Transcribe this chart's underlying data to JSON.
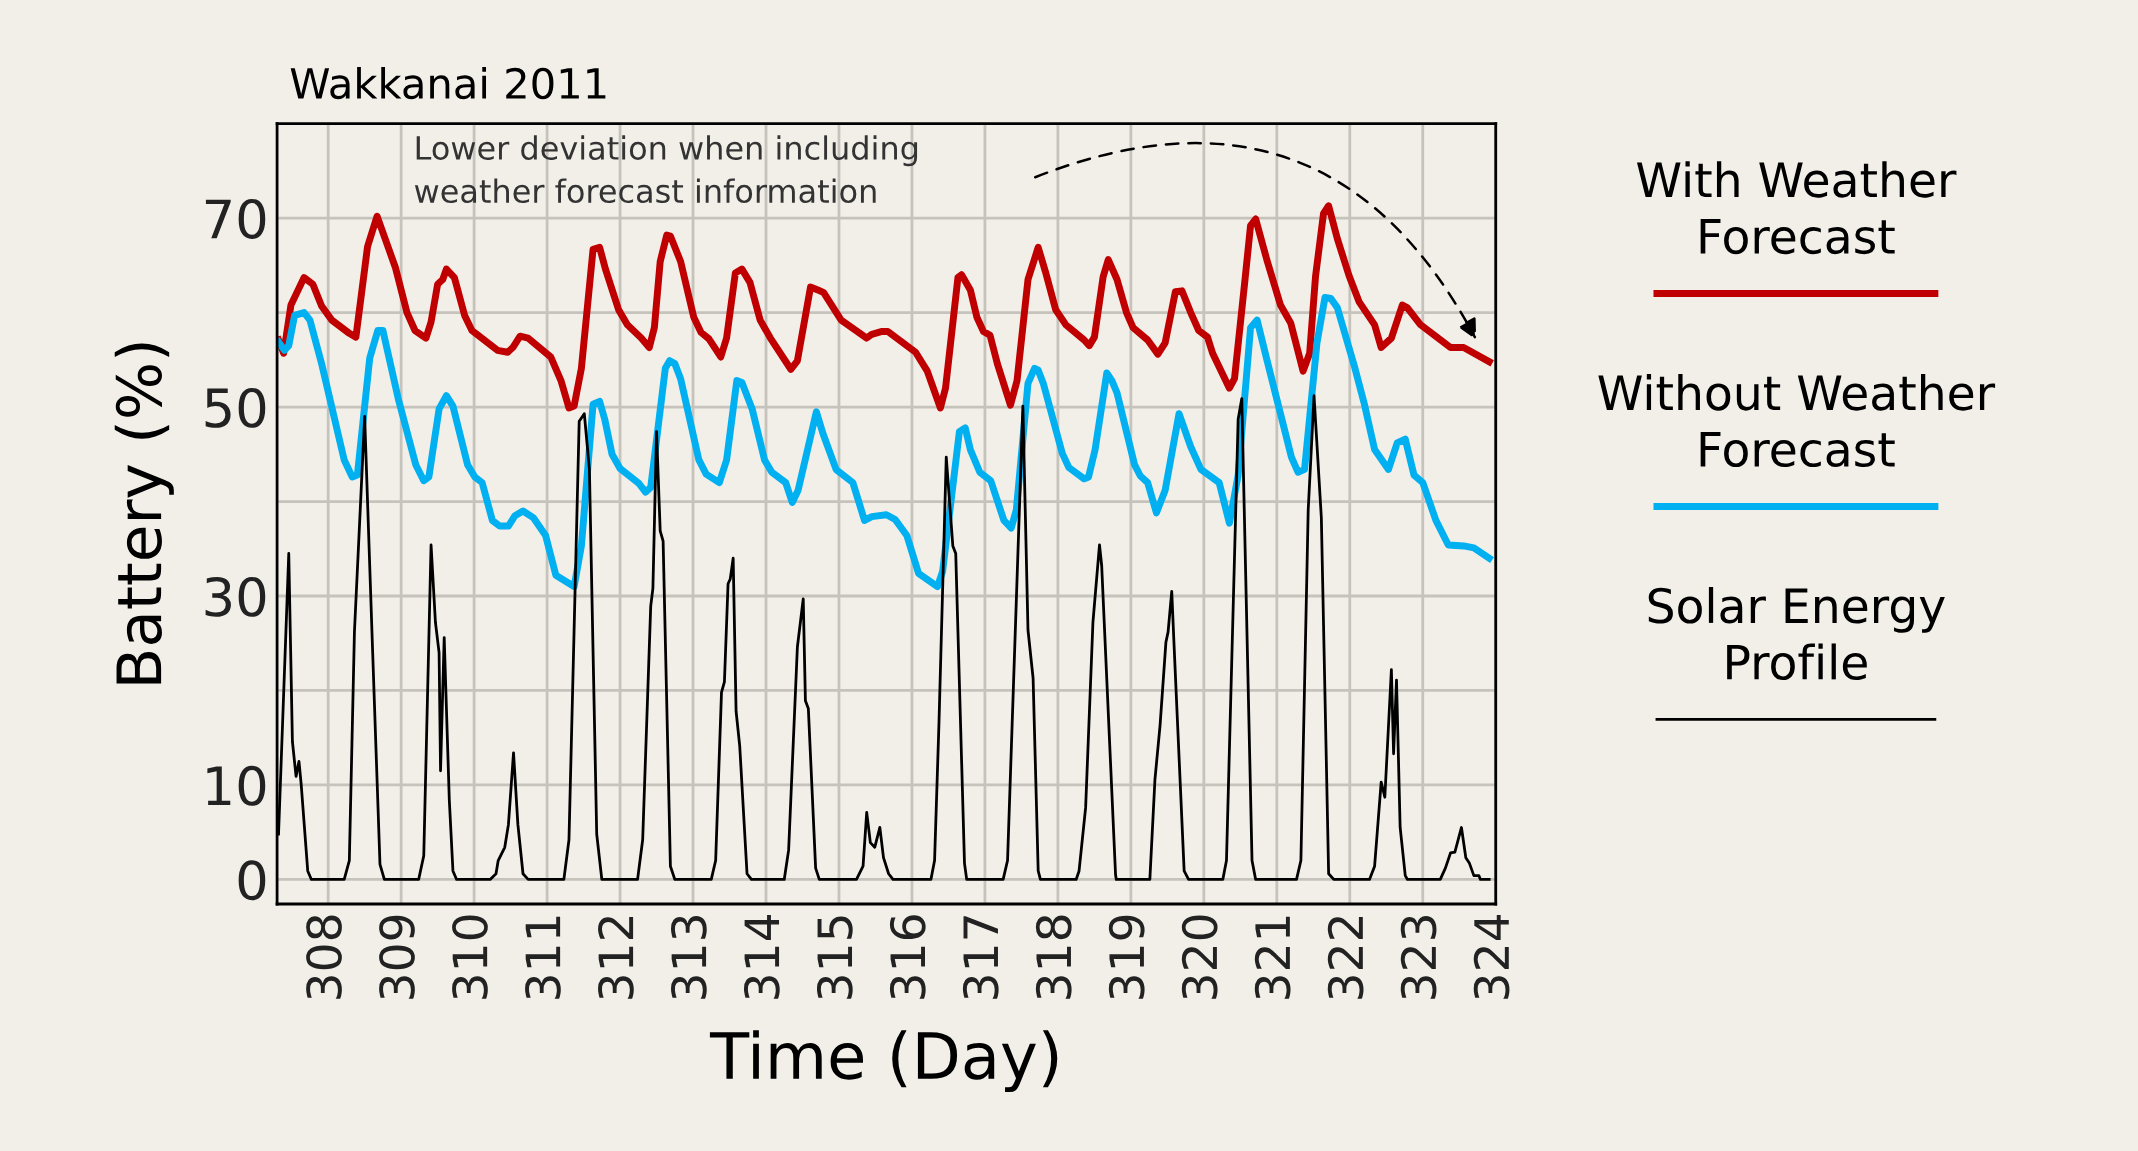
{
  "chart_data": {
    "type": "line",
    "title": "Wakkanai 2011",
    "xlabel": "Time (Day)",
    "ylabel": "Battery (%)",
    "xlim": [
      307.3,
      324
    ],
    "ylim": [
      -2.6,
      80
    ],
    "xticks": [
      308,
      309,
      310,
      311,
      312,
      313,
      314,
      315,
      316,
      317,
      318,
      319,
      320,
      321,
      322,
      323,
      324
    ],
    "yticks": [
      0,
      10,
      {
        "value": 20,
        "label": null
      },
      30,
      {
        "value": 40,
        "label": null
      },
      50,
      {
        "value": 60,
        "label": null
      },
      70
    ],
    "grid": true,
    "legend": "right",
    "marker": "none",
    "line_style": "solid",
    "annotations": [
      "Lower deviation when including\nweather forecast information"
    ],
    "series": [
      {
        "name": "With Weather Forecast",
        "color": "#c00000",
        "x": [
          307.32,
          307.39,
          307.49,
          307.67,
          307.79,
          307.91,
          308.05,
          308.29,
          308.38,
          308.54,
          308.67,
          308.92,
          309.08,
          309.19,
          309.34,
          309.41,
          309.5,
          309.57,
          309.62,
          309.73,
          309.87,
          309.97,
          310.32,
          310.46,
          310.53,
          310.63,
          310.74,
          311.05,
          311.19,
          311.3,
          311.37,
          311.47,
          311.63,
          311.72,
          311.8,
          311.98,
          312.1,
          312.29,
          312.4,
          312.47,
          312.55,
          312.64,
          312.69,
          312.83,
          313.01,
          313.11,
          313.22,
          313.38,
          313.46,
          313.58,
          313.67,
          313.78,
          313.92,
          314.06,
          314.34,
          314.43,
          314.61,
          314.71,
          314.79,
          315.03,
          315.38,
          315.45,
          315.59,
          315.67,
          316.05,
          316.21,
          316.33,
          316.39,
          316.46,
          316.63,
          316.68,
          316.8,
          316.89,
          316.98,
          317.07,
          317.17,
          317.35,
          317.44,
          317.59,
          317.73,
          317.83,
          317.97,
          318.11,
          318.36,
          318.43,
          318.5,
          318.62,
          318.69,
          318.81,
          318.94,
          319.03,
          319.23,
          319.37,
          319.47,
          319.61,
          319.7,
          319.82,
          319.93,
          320.05,
          320.12,
          320.35,
          320.42,
          320.56,
          320.64,
          320.71,
          320.87,
          321.05,
          321.19,
          321.36,
          321.45,
          321.53,
          321.64,
          321.71,
          321.83,
          321.99,
          322.13,
          322.34,
          322.43,
          322.57,
          322.72,
          322.79,
          322.97,
          323.38,
          323.56,
          323.91
        ],
        "values": [
          57.1,
          55.7,
          60.8,
          63.7,
          63.0,
          60.7,
          59.2,
          57.8,
          57.4,
          67.0,
          70.2,
          64.8,
          60.0,
          58.1,
          57.3,
          59.0,
          63.0,
          63.5,
          64.6,
          63.7,
          59.7,
          58.1,
          56.0,
          55.8,
          56.3,
          57.5,
          57.3,
          55.3,
          52.8,
          49.9,
          50.1,
          54.1,
          66.7,
          66.9,
          64.6,
          60.3,
          58.7,
          57.3,
          56.3,
          58.4,
          65.4,
          68.2,
          68.1,
          65.4,
          59.5,
          57.9,
          57.2,
          55.3,
          57.3,
          64.2,
          64.6,
          63.2,
          59.2,
          57.3,
          54.0,
          54.9,
          62.7,
          62.4,
          62.1,
          59.2,
          57.3,
          57.7,
          58.0,
          58.0,
          55.8,
          53.8,
          51.2,
          49.9,
          52.0,
          63.7,
          64.0,
          62.4,
          59.5,
          58.0,
          57.6,
          54.6,
          50.2,
          52.8,
          63.5,
          66.9,
          64.3,
          60.3,
          58.7,
          57.1,
          56.5,
          57.4,
          63.8,
          65.6,
          63.5,
          60.0,
          58.4,
          57.1,
          55.6,
          56.8,
          62.2,
          62.3,
          60.0,
          58.1,
          57.4,
          55.7,
          52.0,
          53.0,
          63.2,
          69.2,
          69.9,
          65.4,
          60.8,
          58.9,
          53.8,
          55.7,
          63.8,
          70.5,
          71.3,
          67.8,
          63.9,
          61.1,
          58.7,
          56.3,
          57.3,
          60.8,
          60.5,
          58.7,
          56.3,
          56.3,
          54.8
        ]
      },
      {
        "name": "Without Weather Forecast",
        "color": "#00b0f0",
        "x": [
          307.32,
          307.4,
          307.46,
          307.54,
          307.67,
          307.75,
          307.91,
          308.22,
          308.33,
          308.4,
          308.57,
          308.68,
          308.75,
          308.96,
          309.2,
          309.31,
          309.38,
          309.52,
          309.62,
          309.71,
          309.91,
          310.01,
          310.11,
          310.25,
          310.35,
          310.47,
          310.56,
          310.67,
          310.81,
          310.98,
          311.12,
          311.37,
          311.47,
          311.63,
          311.72,
          311.79,
          311.89,
          312.0,
          312.26,
          312.35,
          312.42,
          312.62,
          312.68,
          312.75,
          312.83,
          313.08,
          313.18,
          313.36,
          313.46,
          313.6,
          313.67,
          313.81,
          313.98,
          314.08,
          314.27,
          314.36,
          314.44,
          314.69,
          314.78,
          314.96,
          315.19,
          315.35,
          315.45,
          315.65,
          315.77,
          315.93,
          316.09,
          316.35,
          316.42,
          316.65,
          316.73,
          316.8,
          316.93,
          317.08,
          317.26,
          317.36,
          317.43,
          317.59,
          317.68,
          317.73,
          317.8,
          318.06,
          318.15,
          318.36,
          318.42,
          318.51,
          318.67,
          318.74,
          318.81,
          319.05,
          319.13,
          319.23,
          319.35,
          319.47,
          319.66,
          319.82,
          319.96,
          320.21,
          320.35,
          320.47,
          320.64,
          320.73,
          320.87,
          321.05,
          321.2,
          321.29,
          321.38,
          321.55,
          321.66,
          321.74,
          321.83,
          322.06,
          322.2,
          322.34,
          322.53,
          322.65,
          322.76,
          322.88,
          323.0,
          323.18,
          323.35,
          323.56,
          323.7,
          323.91
        ],
        "values": [
          56.9,
          56.0,
          56.5,
          59.7,
          60.0,
          59.2,
          54.6,
          44.4,
          42.6,
          42.8,
          55.2,
          58.1,
          58.1,
          50.9,
          43.9,
          42.2,
          42.6,
          49.8,
          51.2,
          50.1,
          43.9,
          42.6,
          42.0,
          38.0,
          37.4,
          37.4,
          38.5,
          39.0,
          38.3,
          36.4,
          32.2,
          31.0,
          35.3,
          50.3,
          50.6,
          48.7,
          45.0,
          43.5,
          41.9,
          41.0,
          41.5,
          54.1,
          54.9,
          54.6,
          53.0,
          44.4,
          42.9,
          42.0,
          44.4,
          52.8,
          52.6,
          49.8,
          44.4,
          43.1,
          42.0,
          39.9,
          41.2,
          49.5,
          47.2,
          43.4,
          42.0,
          38.0,
          38.4,
          38.6,
          38.1,
          36.4,
          32.4,
          31.0,
          32.6,
          47.4,
          47.8,
          45.5,
          43.1,
          42.2,
          38.0,
          37.2,
          39.1,
          52.5,
          54.1,
          53.9,
          52.5,
          45.1,
          43.6,
          42.4,
          42.6,
          45.5,
          53.6,
          52.8,
          51.5,
          43.9,
          42.7,
          42.0,
          38.8,
          41.2,
          49.3,
          45.8,
          43.4,
          42.0,
          37.7,
          42.8,
          58.4,
          59.2,
          54.8,
          49.3,
          44.7,
          43.1,
          43.4,
          56.8,
          61.6,
          61.5,
          60.5,
          54.4,
          50.3,
          45.5,
          43.4,
          46.2,
          46.6,
          42.8,
          42.0,
          38.0,
          35.4,
          35.3,
          35.1,
          34.0
        ]
      },
      {
        "name": "Solar Energy Profile",
        "color": "#000000",
        "x": [
          307.32,
          307.46,
          307.51,
          307.56,
          307.6,
          307.63,
          307.72,
          307.77,
          308.22,
          308.29,
          308.36,
          308.5,
          308.61,
          308.71,
          308.77,
          309.24,
          309.31,
          309.41,
          309.47,
          309.52,
          309.54,
          309.59,
          309.66,
          309.71,
          309.76,
          310.22,
          310.3,
          310.33,
          310.42,
          310.47,
          310.54,
          310.6,
          310.67,
          310.74,
          311.23,
          311.3,
          311.44,
          311.51,
          311.58,
          311.68,
          311.75,
          312.24,
          312.31,
          312.42,
          312.45,
          312.5,
          312.55,
          312.59,
          312.69,
          312.75,
          313.25,
          313.31,
          313.39,
          313.43,
          313.48,
          313.51,
          313.55,
          313.59,
          313.64,
          313.74,
          313.8,
          314.25,
          314.31,
          314.43,
          314.51,
          314.54,
          314.58,
          314.68,
          314.73,
          315.24,
          315.33,
          315.38,
          315.43,
          315.49,
          315.56,
          315.61,
          315.68,
          315.74,
          316.26,
          316.31,
          316.37,
          316.47,
          316.56,
          316.6,
          316.72,
          316.75,
          317.25,
          317.31,
          317.52,
          317.59,
          317.66,
          317.73,
          317.76,
          318.25,
          318.29,
          318.38,
          318.48,
          318.57,
          318.6,
          318.79,
          318.8,
          319.26,
          319.33,
          319.4,
          319.48,
          319.51,
          319.56,
          319.59,
          319.73,
          319.79,
          320.26,
          320.31,
          320.47,
          320.52,
          320.66,
          320.71,
          321.27,
          321.33,
          321.43,
          321.51,
          321.61,
          321.71,
          321.78,
          322.27,
          322.34,
          322.43,
          322.48,
          322.57,
          322.6,
          322.64,
          322.69,
          322.76,
          322.79,
          323.24,
          323.31,
          323.38,
          323.44,
          323.53,
          323.59,
          323.64,
          323.7,
          323.77,
          323.79,
          323.91
        ],
        "values": [
          4.8,
          34.5,
          14.6,
          10.9,
          12.5,
          10.1,
          0.9,
          0,
          0,
          2.0,
          26.2,
          49.0,
          24.0,
          1.6,
          0,
          0,
          2.5,
          35.4,
          27.2,
          24.0,
          11.5,
          25.6,
          8.4,
          0.9,
          0,
          0,
          0.6,
          2.0,
          3.4,
          5.8,
          13.4,
          5.8,
          0.6,
          0,
          0,
          4.2,
          48.5,
          49.3,
          43.4,
          4.8,
          0,
          0,
          4.2,
          28.9,
          30.8,
          47.4,
          36.9,
          35.8,
          1.4,
          0,
          0,
          2.0,
          19.8,
          20.9,
          31.3,
          31.8,
          34.0,
          17.8,
          14.1,
          0.6,
          0,
          0,
          3.1,
          24.6,
          29.7,
          18.9,
          18.1,
          1.2,
          0,
          0,
          1.4,
          7.1,
          3.9,
          3.4,
          5.5,
          2.3,
          0.6,
          0,
          0,
          2.0,
          16.5,
          44.7,
          35.3,
          34.5,
          1.7,
          0,
          0,
          2.0,
          50.1,
          26.4,
          21.3,
          0.9,
          0,
          0,
          0.9,
          7.6,
          27.2,
          35.4,
          33.2,
          0.5,
          0,
          0,
          10.6,
          16.3,
          25.1,
          26.2,
          30.5,
          25.1,
          0.9,
          0,
          0,
          2.0,
          48.7,
          50.9,
          2.0,
          0,
          0,
          2.0,
          39.1,
          51.2,
          38.3,
          0.6,
          0,
          0,
          1.4,
          10.3,
          8.7,
          22.2,
          13.3,
          21.1,
          5.5,
          0.4,
          0,
          0,
          1.2,
          2.8,
          2.9,
          5.5,
          2.3,
          1.7,
          0.4,
          0.4,
          0,
          0
        ]
      }
    ]
  }
}
